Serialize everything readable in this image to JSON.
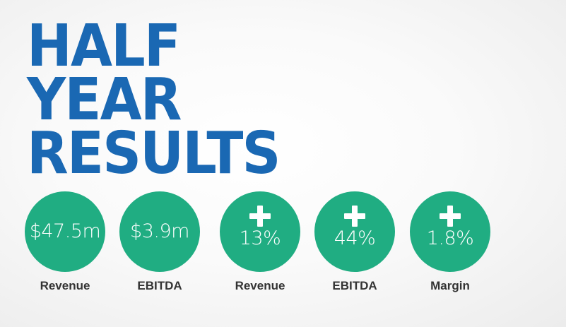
{
  "headline": {
    "line1": "HALF",
    "line2": "YEAR",
    "line3": "RESULTS"
  },
  "colors": {
    "headline": "#1a68b3",
    "circle": "#20ad82",
    "label": "#333333"
  },
  "stats": [
    {
      "value": "$47.5m",
      "label": "Revenue",
      "icon": ""
    },
    {
      "value": "$3.9m",
      "label": "EBITDA",
      "icon": ""
    },
    {
      "value": "13%",
      "label": "Revenue",
      "icon": "plus-icon"
    },
    {
      "value": "44%",
      "label": "EBITDA",
      "icon": "plus-icon"
    },
    {
      "value": "1.8%",
      "label": "Margin",
      "icon": "plus-icon"
    }
  ]
}
